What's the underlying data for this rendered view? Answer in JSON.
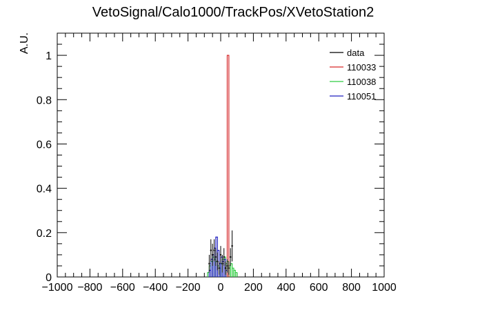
{
  "chart_data": {
    "type": "histogram",
    "title": "VetoSignal/Calo1000/TrackPos/XVetoStation2",
    "xlabel": "",
    "ylabel": "A.U.",
    "xlim": [
      -1000,
      1000
    ],
    "ylim": [
      0,
      1.1
    ],
    "x_ticks": [
      -1000,
      -800,
      -600,
      -400,
      -200,
      0,
      200,
      400,
      600,
      800,
      1000
    ],
    "x_tick_labels": [
      "−1000",
      "−800",
      "−600",
      "−400",
      "−200",
      "0",
      "200",
      "400",
      "600",
      "800",
      "1000"
    ],
    "y_ticks": [
      0,
      0.2,
      0.4,
      0.6,
      0.8,
      1
    ],
    "y_tick_labels": [
      "0",
      "0.2",
      "0.4",
      "0.6",
      "0.8",
      "1"
    ],
    "legend": {
      "position": "top-right"
    },
    "series": [
      {
        "name": "data",
        "style": "points-with-errors",
        "color": "#000000",
        "points": [
          {
            "x": -70,
            "y": 0.06,
            "err": 0.04
          },
          {
            "x": -60,
            "y": 0.12,
            "err": 0.05
          },
          {
            "x": -50,
            "y": 0.1,
            "err": 0.05
          },
          {
            "x": -40,
            "y": 0.12,
            "err": 0.05
          },
          {
            "x": -30,
            "y": 0.09,
            "err": 0.04
          },
          {
            "x": -20,
            "y": 0.07,
            "err": 0.04
          },
          {
            "x": -10,
            "y": 0.04,
            "err": 0.03
          },
          {
            "x": 0,
            "y": 0.1,
            "err": 0.04
          },
          {
            "x": 10,
            "y": 0.06,
            "err": 0.04
          },
          {
            "x": 20,
            "y": 0.09,
            "err": 0.04
          },
          {
            "x": 30,
            "y": 0.04,
            "err": 0.03
          },
          {
            "x": 40,
            "y": 0.05,
            "err": 0.03
          },
          {
            "x": 50,
            "y": 0.04,
            "err": 0.03
          },
          {
            "x": 60,
            "y": 0.09,
            "err": 0.04
          },
          {
            "x": 70,
            "y": 0.14,
            "err": 0.07
          }
        ]
      },
      {
        "name": "110033",
        "style": "step",
        "color": "#d62728",
        "bins": [
          {
            "x0": 40,
            "x1": 50,
            "y": 1.0
          }
        ]
      },
      {
        "name": "110038",
        "style": "step",
        "color": "#2ecc40",
        "bins": [
          {
            "x0": -80,
            "x1": -70,
            "y": 0.02
          },
          {
            "x0": -70,
            "x1": -60,
            "y": 0.05
          },
          {
            "x0": -60,
            "x1": -50,
            "y": 0.07
          },
          {
            "x0": -50,
            "x1": -40,
            "y": 0.09
          },
          {
            "x0": -40,
            "x1": -30,
            "y": 0.08
          },
          {
            "x0": -30,
            "x1": -20,
            "y": 0.07
          },
          {
            "x0": -20,
            "x1": -10,
            "y": 0.05
          },
          {
            "x0": -10,
            "x1": 0,
            "y": 0.04
          },
          {
            "x0": 0,
            "x1": 10,
            "y": 0.06
          },
          {
            "x0": 10,
            "x1": 20,
            "y": 0.08
          },
          {
            "x0": 20,
            "x1": 30,
            "y": 0.09
          },
          {
            "x0": 30,
            "x1": 40,
            "y": 0.06
          },
          {
            "x0": 40,
            "x1": 50,
            "y": 0.07
          },
          {
            "x0": 50,
            "x1": 60,
            "y": 0.05
          },
          {
            "x0": 60,
            "x1": 70,
            "y": 0.06
          },
          {
            "x0": 70,
            "x1": 80,
            "y": 0.04
          },
          {
            "x0": 80,
            "x1": 90,
            "y": 0.03
          },
          {
            "x0": 90,
            "x1": 100,
            "y": 0.02
          }
        ]
      },
      {
        "name": "110051",
        "style": "step",
        "color": "#1f1fbf",
        "bins": [
          {
            "x0": -70,
            "x1": -60,
            "y": 0.03
          },
          {
            "x0": -60,
            "x1": -50,
            "y": 0.08
          },
          {
            "x0": -50,
            "x1": -40,
            "y": 0.1
          },
          {
            "x0": -40,
            "x1": -30,
            "y": 0.13
          },
          {
            "x0": -30,
            "x1": -20,
            "y": 0.18
          },
          {
            "x0": -20,
            "x1": -10,
            "y": 0.12
          },
          {
            "x0": -10,
            "x1": 0,
            "y": 0.06
          },
          {
            "x0": 0,
            "x1": 10,
            "y": 0.09
          },
          {
            "x0": 10,
            "x1": 20,
            "y": 0.07
          },
          {
            "x0": 20,
            "x1": 30,
            "y": 0.08
          },
          {
            "x0": 30,
            "x1": 40,
            "y": 0.03
          }
        ]
      }
    ]
  }
}
